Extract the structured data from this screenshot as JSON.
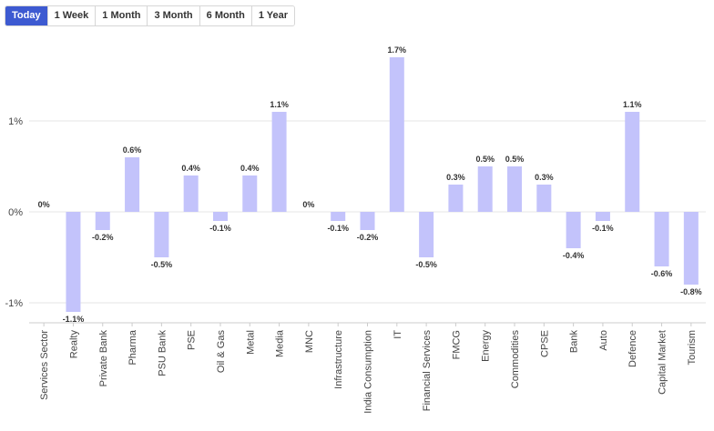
{
  "tabs": [
    {
      "label": "Today",
      "active": true
    },
    {
      "label": "1 Week",
      "active": false
    },
    {
      "label": "1 Month",
      "active": false
    },
    {
      "label": "3 Month",
      "active": false
    },
    {
      "label": "6 Month",
      "active": false
    },
    {
      "label": "1 Year",
      "active": false
    }
  ],
  "colors": {
    "bar": "#c3c3fb",
    "active_tab": "#3d5ad1",
    "grid": "#e6e6e6",
    "text": "#333333"
  },
  "chart_data": {
    "type": "bar",
    "categories": [
      "Services Sector",
      "Realty",
      "Private Bank",
      "Pharma",
      "PSU Bank",
      "PSE",
      "Oil & Gas",
      "Metal",
      "Media",
      "MNC",
      "Infrastructure",
      "India Consumption",
      "IT",
      "Financial Services",
      "FMCG",
      "Energy",
      "Commodities",
      "CPSE",
      "Bank",
      "Auto",
      "Defence",
      "Capital Market",
      "Tourism"
    ],
    "values": [
      0,
      -1.1,
      -0.2,
      0.6,
      -0.5,
      0.4,
      -0.1,
      0.4,
      1.1,
      0,
      -0.1,
      -0.2,
      1.7,
      -0.5,
      0.3,
      0.5,
      0.5,
      0.3,
      -0.4,
      -0.1,
      1.1,
      -0.6,
      -0.8
    ],
    "data_labels": [
      "0%",
      "-1.1%",
      "-0.2%",
      "0.6%",
      "-0.5%",
      "0.4%",
      "-0.1%",
      "0.4%",
      "1.1%",
      "0%",
      "-0.1%",
      "-0.2%",
      "1.7%",
      "-0.5%",
      "0.3%",
      "0.5%",
      "0.5%",
      "0.3%",
      "-0.4%",
      "-0.1%",
      "1.1%",
      "-0.6%",
      "-0.8%"
    ],
    "y_ticks": [
      1,
      0,
      -1
    ],
    "y_tick_labels": [
      "1%",
      "0%",
      "-1%"
    ],
    "ylim": [
      -1.2,
      1.8
    ],
    "grid": true,
    "legend": "none"
  }
}
